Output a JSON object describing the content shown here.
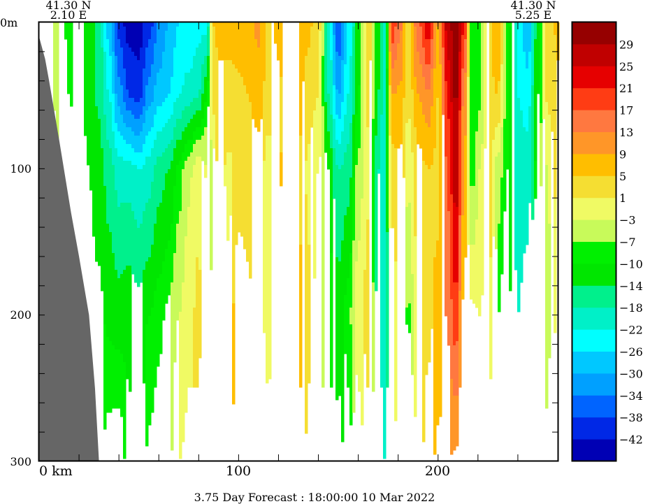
{
  "chart_data": {
    "type": "heatmap",
    "title": "3.75 Day Forecast : 18:00:00  10 Mar 2022",
    "left_label": {
      "lat": "41.30 N",
      "lon": "2.10 E"
    },
    "right_label": {
      "lat": "41.30 N",
      "lon": "5.25 E"
    },
    "xlabel": "km",
    "x_tick_labels": [
      "0 km",
      "100",
      "200"
    ],
    "x_ticks": [
      0,
      100,
      200
    ],
    "xlim": [
      0,
      260
    ],
    "y_tick_labels": [
      "0m",
      "100",
      "200",
      "300"
    ],
    "y_ticks": [
      0,
      100,
      200,
      300
    ],
    "ylim": [
      0,
      300
    ],
    "y_inverted": true,
    "colorbar": {
      "labels": [
        "29",
        "25",
        "21",
        "17",
        "13",
        "9",
        "5",
        "1",
        "−3",
        "−7",
        "−10",
        "−14",
        "−18",
        "−22",
        "−26",
        "−30",
        "−34",
        "−38",
        "−42"
      ],
      "boundaries": [
        29,
        25,
        21,
        17,
        13,
        9,
        5,
        1,
        -3,
        -7,
        -10,
        -14,
        -18,
        -22,
        -26,
        -30,
        -34,
        -38,
        -42
      ],
      "colors": [
        "#960000",
        "#c00000",
        "#e60000",
        "#ff3c14",
        "#ff7840",
        "#ff9628",
        "#ffbe00",
        "#f5de32",
        "#f0fa64",
        "#c8fa5a",
        "#00f000",
        "#00e600",
        "#00f08c",
        "#00f0c8",
        "#00ffff",
        "#00c8ff",
        "#00a0ff",
        "#0064ff",
        "#0028e6",
        "#0000b4"
      ]
    },
    "land_color": "#666666",
    "bathymetry": {
      "km": [
        0,
        3,
        5,
        10,
        16,
        20,
        25,
        28,
        30
      ],
      "depth": [
        10,
        25,
        40,
        80,
        130,
        160,
        200,
        250,
        300
      ]
    },
    "depths": [
      0,
      50,
      100,
      200,
      300
    ],
    "profiles": [
      {
        "km": 0,
        "v": [
          -1,
          -1,
          -1,
          -1,
          -1
        ]
      },
      {
        "km": 5,
        "v": [
          -2,
          -2,
          -2,
          -2,
          -2
        ]
      },
      {
        "km": 10,
        "v": [
          -5,
          -4,
          -3,
          -3,
          -3
        ]
      },
      {
        "km": 15,
        "v": [
          -8,
          -7,
          -5,
          -5,
          -5
        ]
      },
      {
        "km": 20,
        "v": [
          -9,
          -9,
          -9,
          -9,
          -9
        ]
      },
      {
        "km": 25,
        "v": [
          -12,
          -11,
          -10,
          -9,
          -9
        ]
      },
      {
        "km": 30,
        "v": [
          -16,
          -15,
          -12,
          -9,
          -8
        ]
      },
      {
        "km": 35,
        "v": [
          -28,
          -22,
          -16,
          -11,
          -5
        ]
      },
      {
        "km": 40,
        "v": [
          -40,
          -32,
          -20,
          -12,
          -4
        ]
      },
      {
        "km": 45,
        "v": [
          -44,
          -38,
          -20,
          -11,
          -9
        ]
      },
      {
        "km": 50,
        "v": [
          -44,
          -40,
          -22,
          -12,
          -12
        ]
      },
      {
        "km": 55,
        "v": [
          -40,
          -32,
          -20,
          -10,
          -6
        ]
      },
      {
        "km": 60,
        "v": [
          -34,
          -28,
          -16,
          -8,
          -5
        ]
      },
      {
        "km": 65,
        "v": [
          -30,
          -26,
          -14,
          -6,
          -4
        ]
      },
      {
        "km": 70,
        "v": [
          -26,
          -22,
          -9,
          -3,
          1
        ]
      },
      {
        "km": 75,
        "v": [
          -26,
          -20,
          -4,
          0,
          2
        ]
      },
      {
        "km": 80,
        "v": [
          -24,
          -18,
          0,
          2,
          0
        ]
      },
      {
        "km": 84,
        "v": [
          -24,
          -10,
          -3,
          -6,
          -4
        ]
      },
      {
        "km": 87,
        "v": [
          5,
          3,
          -6,
          -8,
          -8
        ]
      },
      {
        "km": 90,
        "v": [
          6,
          4,
          3,
          2,
          3
        ]
      },
      {
        "km": 95,
        "v": [
          6,
          4,
          0,
          2,
          1
        ]
      },
      {
        "km": 100,
        "v": [
          7,
          4,
          2,
          9,
          9
        ]
      },
      {
        "km": 105,
        "v": [
          8,
          5,
          3,
          6,
          6
        ]
      },
      {
        "km": 110,
        "v": [
          10,
          7,
          3,
          2,
          3
        ]
      },
      {
        "km": 115,
        "v": [
          4,
          3,
          -1,
          0,
          2
        ]
      },
      {
        "km": 120,
        "v": [
          6,
          4,
          5,
          3,
          4
        ]
      },
      {
        "km": 125,
        "v": [
          9,
          7,
          6,
          8,
          8
        ]
      },
      {
        "km": 130,
        "v": [
          8,
          6,
          5,
          6,
          5
        ]
      },
      {
        "km": 135,
        "v": [
          6,
          3,
          0,
          2,
          0
        ]
      },
      {
        "km": 140,
        "v": [
          3,
          1,
          -3,
          -6,
          -5
        ]
      },
      {
        "km": 145,
        "v": [
          -20,
          -18,
          -10,
          -8,
          -10
        ]
      },
      {
        "km": 150,
        "v": [
          -38,
          -30,
          -18,
          -12,
          -16
        ]
      },
      {
        "km": 155,
        "v": [
          -26,
          -22,
          -16,
          -8,
          -12
        ]
      },
      {
        "km": 160,
        "v": [
          -12,
          -10,
          -6,
          0,
          -6
        ]
      },
      {
        "km": 165,
        "v": [
          4,
          2,
          0,
          3,
          -1
        ]
      },
      {
        "km": 170,
        "v": [
          -12,
          -14,
          -18,
          -16,
          -14
        ]
      },
      {
        "km": 173,
        "v": [
          -22,
          -20,
          -20,
          -22,
          -18
        ]
      },
      {
        "km": 177,
        "v": [
          20,
          9,
          3,
          -2,
          0
        ]
      },
      {
        "km": 181,
        "v": [
          14,
          8,
          4,
          2,
          4
        ]
      },
      {
        "km": 185,
        "v": [
          3,
          2,
          -2,
          -8,
          -4
        ]
      },
      {
        "km": 190,
        "v": [
          16,
          9,
          3,
          2,
          3
        ]
      },
      {
        "km": 195,
        "v": [
          24,
          12,
          5,
          4,
          7
        ]
      },
      {
        "km": 200,
        "v": [
          9,
          5,
          4,
          6,
          10
        ]
      },
      {
        "km": 205,
        "v": [
          28,
          22,
          18,
          14,
          9
        ]
      },
      {
        "km": 209,
        "v": [
          32,
          30,
          28,
          20,
          8
        ]
      },
      {
        "km": 213,
        "v": [
          22,
          12,
          10,
          3,
          4
        ]
      },
      {
        "km": 217,
        "v": [
          -10,
          -10,
          -9,
          2,
          3
        ]
      },
      {
        "km": 221,
        "v": [
          -9,
          -8,
          -3,
          1,
          5
        ]
      },
      {
        "km": 225,
        "v": [
          4,
          4,
          3,
          3,
          4
        ]
      },
      {
        "km": 230,
        "v": [
          8,
          5,
          -5,
          -10,
          -10
        ]
      },
      {
        "km": 235,
        "v": [
          -8,
          -10,
          -10,
          -14,
          -14
        ]
      },
      {
        "km": 240,
        "v": [
          -22,
          -22,
          -20,
          -18,
          -18
        ]
      },
      {
        "km": 245,
        "v": [
          -30,
          -24,
          -20,
          -16,
          -16
        ]
      },
      {
        "km": 250,
        "v": [
          -12,
          -10,
          -8,
          -10,
          -10
        ]
      },
      {
        "km": 255,
        "v": [
          2,
          2,
          -3,
          -4,
          -2
        ]
      },
      {
        "km": 260,
        "v": [
          6,
          4,
          2,
          2,
          3
        ]
      }
    ]
  }
}
